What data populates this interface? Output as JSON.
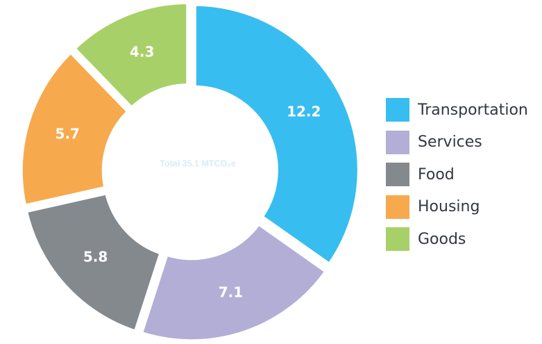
{
  "chart_data": {
    "type": "pie",
    "variant": "donut",
    "center_label": "Total 35.1 MTCO₂e",
    "categories": [
      "Transportation",
      "Services",
      "Food",
      "Housing",
      "Goods"
    ],
    "values": [
      12.2,
      7.1,
      5.8,
      5.7,
      4.3
    ],
    "value_labels": [
      "12.2",
      "7.1",
      "5.8",
      "5.7",
      "4.3"
    ],
    "colors": [
      "#38bdf0",
      "#b3aed6",
      "#84898e",
      "#f7a94d",
      "#a8d068"
    ],
    "legend_position": "right"
  }
}
